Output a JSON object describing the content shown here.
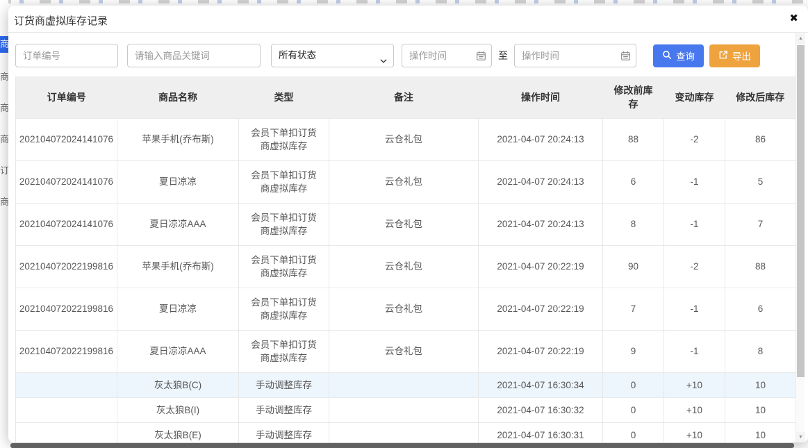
{
  "modal": {
    "title": "订货商虚拟库存记录",
    "close_glyph": "✖"
  },
  "filters": {
    "order_no_placeholder": "订单编号",
    "keyword_placeholder": "请输入商品关键词",
    "status_selected": "所有状态",
    "date_from_placeholder": "操作时间",
    "to_label": "至",
    "date_to_placeholder": "操作时间",
    "search_label": "查询",
    "export_label": "导出"
  },
  "table": {
    "columns": [
      "订单编号",
      "商品名称",
      "类型",
      "备注",
      "操作时间",
      "修改前库存",
      "变动库存",
      "修改后库存"
    ],
    "rows": [
      [
        "202104072024141076",
        "苹果手机(乔布斯)",
        "会员下单扣订货商虚拟库存",
        "云仓礼包",
        "2021-04-07 20:24:13",
        "88",
        "-2",
        "86"
      ],
      [
        "202104072024141076",
        "夏日凉凉",
        "会员下单扣订货商虚拟库存",
        "云仓礼包",
        "2021-04-07 20:24:13",
        "6",
        "-1",
        "5"
      ],
      [
        "202104072024141076",
        "夏日凉凉AAA",
        "会员下单扣订货商虚拟库存",
        "云仓礼包",
        "2021-04-07 20:24:13",
        "8",
        "-1",
        "7"
      ],
      [
        "202104072022199816",
        "苹果手机(乔布斯)",
        "会员下单扣订货商虚拟库存",
        "云仓礼包",
        "2021-04-07 20:22:19",
        "90",
        "-2",
        "88"
      ],
      [
        "202104072022199816",
        "夏日凉凉",
        "会员下单扣订货商虚拟库存",
        "云仓礼包",
        "2021-04-07 20:22:19",
        "7",
        "-1",
        "6"
      ],
      [
        "202104072022199816",
        "夏日凉凉AAA",
        "会员下单扣订货商虚拟库存",
        "云仓礼包",
        "2021-04-07 20:22:19",
        "9",
        "-1",
        "8"
      ],
      [
        "",
        "灰太狼B(C)",
        "手动调整库存",
        "",
        "2021-04-07 16:30:34",
        "0",
        "+10",
        "10"
      ],
      [
        "",
        "灰太狼B(I)",
        "手动调整库存",
        "",
        "2021-04-07 16:30:32",
        "0",
        "+10",
        "10"
      ],
      [
        "",
        "灰太狼B(E)",
        "手动调整库存",
        "",
        "2021-04-07 16:30:31",
        "0",
        "+10",
        "10"
      ]
    ],
    "highlighted_row_index": 6
  },
  "background": {
    "sidebar_fragments": [
      {
        "label": "商",
        "active": true
      },
      {
        "label": "商",
        "active": false
      },
      {
        "label": "商",
        "active": false
      },
      {
        "label": "商",
        "active": false
      },
      {
        "label": "订",
        "active": false
      },
      {
        "label": "商",
        "active": false
      }
    ]
  },
  "scrollbar": {
    "up_glyph": "▲",
    "down_glyph": "▼"
  },
  "colors": {
    "search_button": "#4878ee",
    "export_button": "#efa33e",
    "sidebar_active": "#2e6bf0",
    "highlight_row": "#edf5fd",
    "table_header_bg": "#efefef",
    "table_border": "#e8e8e8"
  }
}
